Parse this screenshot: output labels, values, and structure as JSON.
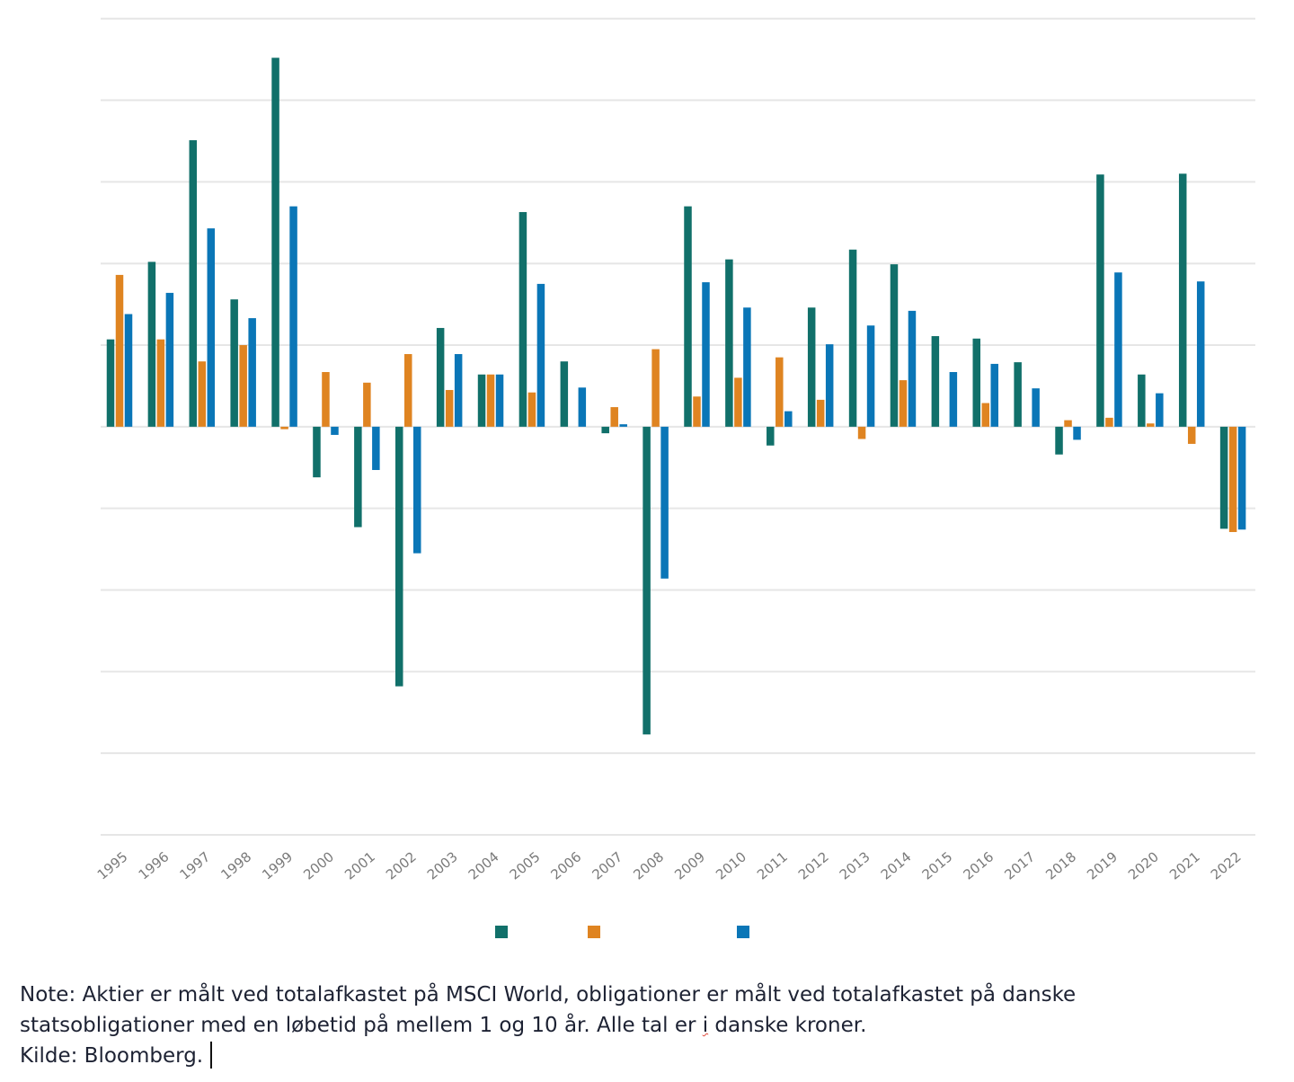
{
  "chart_data": {
    "type": "bar",
    "title": "",
    "xlabel": "",
    "ylabel": "",
    "ylim": [
      -50,
      50
    ],
    "y_unit": "%",
    "y_tick_step": 10,
    "y_tick_labels_visible": false,
    "grid": true,
    "legend_position": "bottom-center",
    "categories": [
      "1995",
      "1996",
      "1997",
      "1998",
      "1999",
      "2000",
      "2001",
      "2002",
      "2003",
      "2004",
      "2005",
      "2006",
      "2007",
      "2008",
      "2009",
      "2010",
      "2011",
      "2012",
      "2013",
      "2014",
      "2015",
      "2016",
      "2017",
      "2018",
      "2019",
      "2020",
      "2021",
      "2022"
    ],
    "series": [
      {
        "name": "",
        "color": "#11706a",
        "values": [
          10.7,
          20.2,
          35.1,
          15.6,
          45.2,
          -6.2,
          -12.3,
          -31.8,
          12.1,
          6.4,
          26.3,
          8.0,
          -0.8,
          -37.7,
          27.0,
          20.5,
          -2.3,
          14.6,
          21.7,
          19.9,
          11.1,
          10.8,
          7.9,
          -3.4,
          30.9,
          6.4,
          31.0,
          -12.5
        ]
      },
      {
        "name": "",
        "color": "#df8421",
        "values": [
          18.6,
          10.7,
          8.0,
          10.0,
          -0.3,
          6.7,
          5.4,
          8.9,
          4.5,
          6.4,
          4.2,
          0.0,
          2.4,
          9.5,
          3.7,
          6.0,
          8.5,
          3.3,
          -1.5,
          5.7,
          0.0,
          2.9,
          0.0,
          0.8,
          1.1,
          0.4,
          -2.1,
          -12.9
        ]
      },
      {
        "name": "",
        "color": "#0a76b7",
        "values": [
          13.8,
          16.4,
          24.3,
          13.3,
          27.0,
          -1.0,
          -5.3,
          -15.5,
          8.9,
          6.4,
          17.5,
          4.8,
          0.3,
          -18.6,
          17.7,
          14.6,
          1.9,
          10.1,
          12.4,
          14.2,
          6.7,
          7.7,
          4.7,
          -1.6,
          18.9,
          4.1,
          17.8,
          -12.6
        ]
      }
    ]
  },
  "note": {
    "line1": "Note: Aktier er målt ved totalafkastet på MSCI World, obligationer er målt ved totalafkastet på danske",
    "line2_before": "statsobligationer med en løbetid på mellem 1 og 10 år. Alle tal er ",
    "line2_flagged_word": "i",
    "line2_after": " danske kroner.",
    "line3": "Kilde: Bloomberg."
  }
}
